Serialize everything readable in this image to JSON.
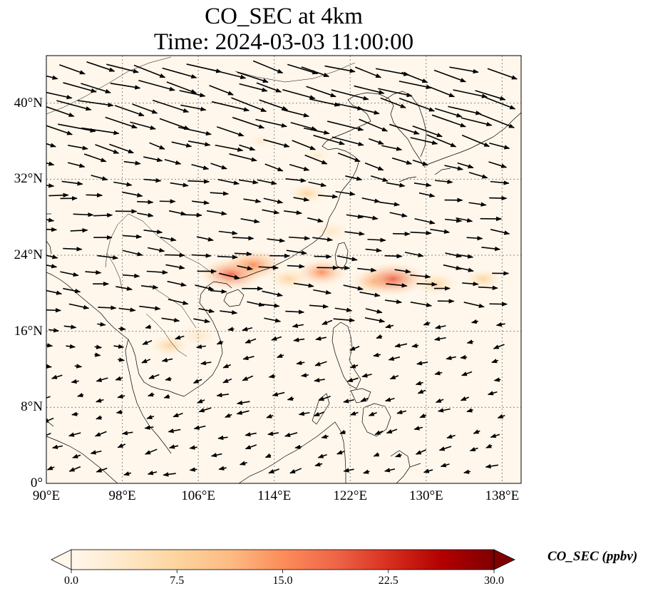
{
  "title_line1": "CO_SEC at 4km",
  "title_line2": "Time: 2024-03-03 11:00:00",
  "map": {
    "extent_lon": [
      90,
      140
    ],
    "extent_lat": [
      0,
      45
    ],
    "gridlines": true,
    "lat_ticks": [
      "0°",
      "8°N",
      "16°N",
      "24°N",
      "32°N",
      "40°N"
    ],
    "lat_values": [
      0,
      8,
      16,
      24,
      32,
      40
    ],
    "lon_ticks": [
      "90°E",
      "98°E",
      "106°E",
      "114°E",
      "122°E",
      "130°E",
      "138°E"
    ],
    "lon_values": [
      90,
      98,
      106,
      114,
      122,
      130,
      138
    ],
    "wind_vectors": true
  },
  "colorbar": {
    "label": "CO_SEC (ppbv)",
    "ticks": [
      "0.0",
      "7.5",
      "15.0",
      "22.5",
      "30.0"
    ],
    "tick_values": [
      0,
      7.5,
      15,
      22.5,
      30
    ],
    "range": [
      0,
      30
    ],
    "colormap": "OrRd",
    "colors": [
      "#fff7ec",
      "#fee8c8",
      "#fdd49e",
      "#fdbb84",
      "#fc8d59",
      "#ef6548",
      "#d7301f",
      "#b30000",
      "#7f0000"
    ]
  },
  "plumes": [
    {
      "lon": 109.5,
      "lat": 22.0,
      "value": 18
    },
    {
      "lon": 111.8,
      "lat": 23.0,
      "value": 16
    },
    {
      "lon": 115.5,
      "lat": 21.5,
      "value": 8
    },
    {
      "lon": 119.0,
      "lat": 22.2,
      "value": 14
    },
    {
      "lon": 124.5,
      "lat": 21.2,
      "value": 12
    },
    {
      "lon": 126.5,
      "lat": 21.5,
      "value": 19
    },
    {
      "lon": 131.0,
      "lat": 21.0,
      "value": 9
    },
    {
      "lon": 136.0,
      "lat": 21.5,
      "value": 6
    },
    {
      "lon": 117.5,
      "lat": 30.5,
      "value": 6
    },
    {
      "lon": 118.5,
      "lat": 34.5,
      "value": 4
    },
    {
      "lon": 112.5,
      "lat": 36.0,
      "value": 3
    },
    {
      "lon": 103.0,
      "lat": 14.5,
      "value": 7
    },
    {
      "lon": 106.0,
      "lat": 15.5,
      "value": 5
    },
    {
      "lon": 120.0,
      "lat": 26.5,
      "value": 5
    }
  ]
}
